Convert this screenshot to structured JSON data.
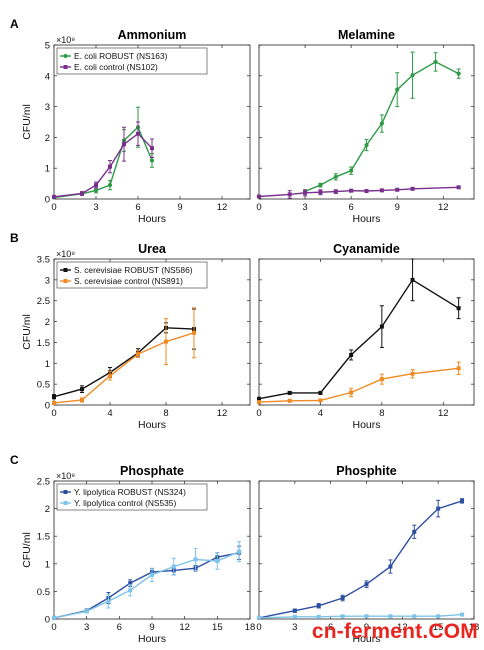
{
  "watermark": "cn-ferment.COM",
  "chart_data": [
    {
      "panel": "A",
      "title": "Ammonium",
      "type": "line",
      "xlabel": "Hours",
      "ylabel": "CFU/ml",
      "y_multiplier": "×10⁹",
      "xlim": [
        0,
        14
      ],
      "ylim": [
        0,
        5
      ],
      "xticks": [
        0,
        3,
        6,
        9,
        12
      ],
      "yticks": [
        0,
        1,
        2,
        3,
        4,
        5
      ],
      "legend": "top-left",
      "series": [
        {
          "name": "E. coli ROBUST (NS163)",
          "color": "#2e9a48",
          "marker": "circle",
          "x": [
            0,
            2,
            3,
            4,
            5,
            6,
            7
          ],
          "y": [
            0.05,
            0.17,
            0.28,
            0.45,
            1.9,
            2.33,
            1.25
          ],
          "err": [
            0.02,
            0.05,
            0.08,
            0.15,
            0.35,
            0.65,
            0.22
          ]
        },
        {
          "name": "E. coli control (NS102)",
          "color": "#7a2e8e",
          "marker": "square",
          "x": [
            0,
            2,
            3,
            4,
            5,
            6,
            7
          ],
          "y": [
            0.07,
            0.18,
            0.45,
            1.05,
            1.78,
            2.12,
            1.65
          ],
          "err": [
            0.02,
            0.06,
            0.1,
            0.2,
            0.55,
            0.38,
            0.3
          ]
        }
      ]
    },
    {
      "panel": "A",
      "title": "Melamine",
      "type": "line",
      "xlabel": "Hours",
      "xlim": [
        0,
        14
      ],
      "ylim": [
        0,
        5
      ],
      "xticks": [
        0,
        3,
        6,
        9,
        12
      ],
      "series": [
        {
          "name": "E. coli ROBUST (NS163)",
          "color": "#2e9a48",
          "marker": "circle",
          "x": [
            3,
            4,
            5,
            6,
            7,
            8,
            9,
            10,
            11.5,
            13
          ],
          "y": [
            0.25,
            0.45,
            0.72,
            0.92,
            1.75,
            2.45,
            3.55,
            4.02,
            4.45,
            4.07
          ],
          "err": [
            0.03,
            0.06,
            0.1,
            0.12,
            0.18,
            0.28,
            0.55,
            0.75,
            0.3,
            0.15
          ]
        },
        {
          "name": "E. coli control (NS102)",
          "color": "#7a2e8e",
          "marker": "square",
          "x": [
            0,
            2,
            3,
            4,
            5,
            6,
            7,
            8,
            9,
            10,
            13
          ],
          "y": [
            0.08,
            0.15,
            0.2,
            0.22,
            0.24,
            0.27,
            0.26,
            0.28,
            0.3,
            0.33,
            0.38
          ],
          "err": [
            0.02,
            0.12,
            0.1,
            0.08,
            0.06,
            0.04,
            0.03,
            0.03,
            0.03,
            0.03,
            0.03
          ]
        }
      ]
    },
    {
      "panel": "B",
      "title": "Urea",
      "type": "line",
      "xlabel": "Hours",
      "ylabel": "CFU/ml",
      "y_multiplier": "×10⁹",
      "xlim": [
        0,
        14
      ],
      "ylim": [
        0,
        3.5
      ],
      "xticks": [
        0,
        4,
        8,
        12
      ],
      "yticks": [
        0,
        0.5,
        1,
        1.5,
        2,
        2.5,
        3,
        3.5
      ],
      "legend": "top-left",
      "series": [
        {
          "name": "S. cerevisiae ROBUST (NS586)",
          "color": "#111111",
          "marker": "square",
          "x": [
            0,
            2,
            4,
            6,
            8,
            10
          ],
          "y": [
            0.2,
            0.38,
            0.78,
            1.25,
            1.85,
            1.82
          ],
          "err": [
            0.05,
            0.08,
            0.12,
            0.1,
            0.12,
            0.48
          ]
        },
        {
          "name": "S. cerevisiae control (NS891)",
          "color": "#f08a24",
          "marker": "square",
          "x": [
            0,
            2,
            4,
            6,
            8,
            10
          ],
          "y": [
            0.05,
            0.12,
            0.7,
            1.22,
            1.52,
            1.73
          ],
          "err": [
            0.03,
            0.05,
            0.1,
            0.08,
            0.55,
            0.6
          ]
        }
      ]
    },
    {
      "panel": "B",
      "title": "Cyanamide",
      "type": "line",
      "xlabel": "Hours",
      "xlim": [
        0,
        14
      ],
      "ylim": [
        0,
        3.5
      ],
      "xticks": [
        0,
        4,
        8,
        12
      ],
      "series": [
        {
          "name": "S. cerevisiae ROBUST (NS586)",
          "color": "#111111",
          "marker": "square",
          "x": [
            0,
            2,
            4,
            6,
            8,
            10,
            13
          ],
          "y": [
            0.15,
            0.29,
            0.29,
            1.2,
            1.88,
            3.0,
            2.32
          ],
          "err": [
            0.03,
            0.03,
            0.03,
            0.12,
            0.5,
            0.5,
            0.25
          ]
        },
        {
          "name": "S. cerevisiae control (NS891)",
          "color": "#f08a24",
          "marker": "square",
          "x": [
            0,
            2,
            4,
            6,
            8,
            10,
            13
          ],
          "y": [
            0.07,
            0.1,
            0.11,
            0.3,
            0.62,
            0.75,
            0.88
          ],
          "err": [
            0.02,
            0.02,
            0.03,
            0.1,
            0.12,
            0.1,
            0.15
          ]
        }
      ]
    },
    {
      "panel": "C",
      "title": "Phosphate",
      "type": "line",
      "xlabel": "Hours",
      "ylabel": "CFU/ml",
      "y_multiplier": "×10⁹",
      "xlim": [
        0,
        18
      ],
      "ylim": [
        0,
        2.5
      ],
      "xticks": [
        0,
        3,
        6,
        9,
        12,
        15,
        18
      ],
      "yticks": [
        0,
        0.5,
        1,
        1.5,
        2,
        2.5
      ],
      "legend": "top-left",
      "series": [
        {
          "name": "Y. lipolytica ROBUST (NS324)",
          "color": "#2d4fa2",
          "marker": "square",
          "x": [
            0,
            3,
            5,
            7,
            9,
            11,
            13,
            15,
            17
          ],
          "y": [
            0.02,
            0.15,
            0.38,
            0.65,
            0.85,
            0.88,
            0.92,
            1.12,
            1.2
          ],
          "err": [
            0.01,
            0.03,
            0.1,
            0.06,
            0.06,
            0.08,
            0.05,
            0.08,
            0.12
          ]
        },
        {
          "name": "Y. lipolytica control (NS535)",
          "color": "#7fc4e8",
          "marker": "square",
          "x": [
            0,
            3,
            5,
            7,
            9,
            11,
            13,
            15,
            17
          ],
          "y": [
            0.02,
            0.14,
            0.32,
            0.52,
            0.8,
            0.95,
            1.08,
            1.05,
            1.22
          ],
          "err": [
            0.01,
            0.03,
            0.12,
            0.1,
            0.12,
            0.15,
            0.2,
            0.15,
            0.18
          ]
        }
      ]
    },
    {
      "panel": "C",
      "title": "Phosphite",
      "type": "line",
      "xlabel": "Hours",
      "xlim": [
        0,
        18
      ],
      "ylim": [
        0,
        2.5
      ],
      "xticks": [
        0,
        3,
        6,
        9,
        12,
        15,
        18
      ],
      "series": [
        {
          "name": "Y. lipolytica ROBUST (NS324)",
          "color": "#2d4fa2",
          "marker": "square",
          "x": [
            0,
            3,
            5,
            7,
            9,
            11,
            13,
            15,
            17
          ],
          "y": [
            0.02,
            0.15,
            0.24,
            0.38,
            0.63,
            0.95,
            1.58,
            2.0,
            2.14
          ],
          "err": [
            0.01,
            0.03,
            0.04,
            0.05,
            0.06,
            0.12,
            0.12,
            0.15,
            0.04
          ]
        },
        {
          "name": "Y. lipolytica control (NS535)",
          "color": "#7fc4e8",
          "marker": "square",
          "x": [
            0,
            3,
            5,
            7,
            9,
            11,
            13,
            15,
            17
          ],
          "y": [
            0.02,
            0.04,
            0.04,
            0.05,
            0.05,
            0.05,
            0.05,
            0.05,
            0.08
          ],
          "err": [
            0.01,
            0.01,
            0.01,
            0.01,
            0.01,
            0.01,
            0.01,
            0.01,
            0.02
          ]
        }
      ]
    }
  ]
}
